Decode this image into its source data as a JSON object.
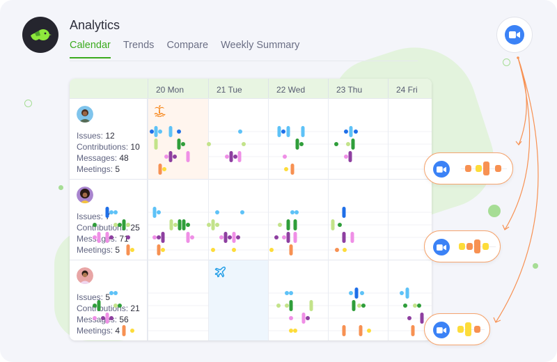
{
  "header": {
    "title": "Analytics",
    "tabs": [
      {
        "label": "Calendar",
        "active": true
      },
      {
        "label": "Trends",
        "active": false
      },
      {
        "label": "Compare",
        "active": false
      },
      {
        "label": "Weekly Summary",
        "active": false
      }
    ]
  },
  "colors": {
    "accent": "#3aaa1d",
    "issues_dark": "#1f6fe8",
    "issues_light": "#5ec2f7",
    "contrib_dark": "#2f9e3a",
    "contrib_light": "#c3e38a",
    "messages_dark": "#8e3fa0",
    "messages_light": "#ef8fe6",
    "meetings_orange": "#f79152",
    "meetings_yellow": "#fddc3a",
    "zoom_blue": "#3b82f6",
    "vacation_bg": "#fff5ee",
    "travel_bg": "#eef6fd"
  },
  "calendar": {
    "days": [
      "20 Mon",
      "21 Tue",
      "22 Wed",
      "23 Thu",
      "24 Fri"
    ],
    "people": [
      {
        "avatar": "avatar-person-1",
        "stats": [
          {
            "label": "Issues:",
            "value": "12"
          },
          {
            "label": "Contributions:",
            "value": "10"
          },
          {
            "label": "Messages:",
            "value": "48"
          },
          {
            "label": "Meetings:",
            "value": "5"
          }
        ],
        "status": {
          "day": 0,
          "icon": "palm-tree-icon",
          "type": "vacation"
        }
      },
      {
        "avatar": "avatar-person-2",
        "stats": [
          {
            "label": "Issues:",
            "value": "7"
          },
          {
            "label": "Contributions:",
            "value": "25"
          },
          {
            "label": "Messages:",
            "value": "71"
          },
          {
            "label": "Meetings:",
            "value": "5"
          }
        ]
      },
      {
        "avatar": "avatar-person-3",
        "stats": [
          {
            "label": "Issues:",
            "value": "5"
          },
          {
            "label": "Contributions:",
            "value": "21"
          },
          {
            "label": "Messages:",
            "value": "56"
          },
          {
            "label": "Meetings:",
            "value": "4"
          }
        ],
        "status": {
          "day": 1,
          "icon": "airplane-icon",
          "type": "travel"
        }
      }
    ]
  },
  "meetings_button": {
    "icon": "video-camera-icon"
  },
  "meeting_pills": [
    {
      "icon": "video-camera-icon",
      "blocks": [
        "orange-small",
        "yellow-small",
        "orange-tall",
        "orange-small"
      ]
    },
    {
      "icon": "video-camera-icon",
      "blocks": [
        "yellow-small",
        "orange-small",
        "orange-tall",
        "yellow-small"
      ]
    },
    {
      "icon": "video-camera-icon",
      "blocks": [
        "yellow-small",
        "yellow-tall",
        "orange-small"
      ]
    }
  ]
}
